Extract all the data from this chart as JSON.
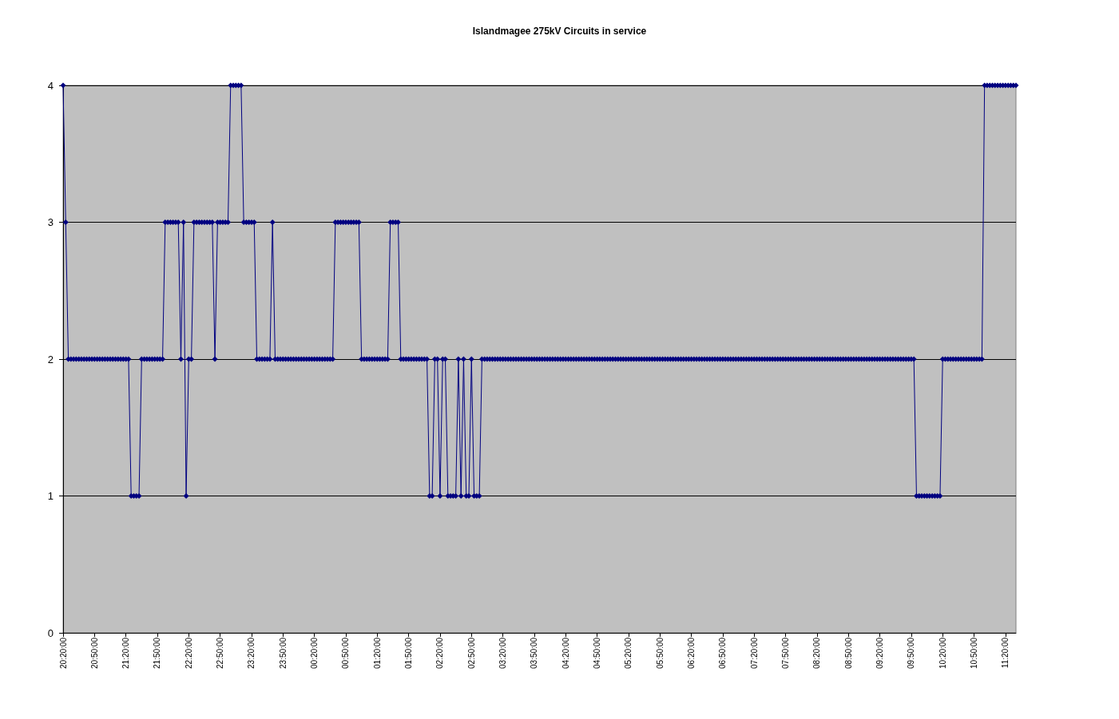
{
  "chart_data": {
    "type": "line",
    "title": "Islandmagee 275kV Circuits in service",
    "categories": [
      "20:20:00",
      null,
      null,
      null,
      null,
      null,
      null,
      null,
      null,
      null,
      null,
      null,
      "20:50:00",
      null,
      null,
      null,
      null,
      null,
      null,
      null,
      null,
      null,
      null,
      null,
      "21:20:00",
      null,
      null,
      null,
      null,
      null,
      null,
      null,
      null,
      null,
      null,
      null,
      "21:50:00",
      null,
      null,
      null,
      null,
      null,
      null,
      null,
      null,
      null,
      null,
      null,
      "22:20:00",
      null,
      null,
      null,
      null,
      null,
      null,
      null,
      null,
      null,
      null,
      null,
      "22:50:00",
      null,
      null,
      null,
      null,
      null,
      null,
      null,
      null,
      null,
      null,
      null,
      "23:20:00",
      null,
      null,
      null,
      null,
      null,
      null,
      null,
      null,
      null,
      null,
      null,
      "23:50:00",
      null,
      null,
      null,
      null,
      null,
      null,
      null,
      null,
      null,
      null,
      null,
      "00:20:00",
      null,
      null,
      null,
      null,
      null,
      null,
      null,
      null,
      null,
      null,
      null,
      "00:50:00",
      null,
      null,
      null,
      null,
      null,
      null,
      null,
      null,
      null,
      null,
      null,
      "01:20:00",
      null,
      null,
      null,
      null,
      null,
      null,
      null,
      null,
      null,
      null,
      null,
      "01:50:00",
      null,
      null,
      null,
      null,
      null,
      null,
      null,
      null,
      null,
      null,
      null,
      "02:20:00",
      null,
      null,
      null,
      null,
      null,
      null,
      null,
      null,
      null,
      null,
      null,
      "02:50:00",
      null,
      null,
      null,
      null,
      null,
      null,
      null,
      null,
      null,
      null,
      null,
      "03:20:00",
      null,
      null,
      null,
      null,
      null,
      null,
      null,
      null,
      null,
      null,
      null,
      "03:50:00",
      null,
      null,
      null,
      null,
      null,
      null,
      null,
      null,
      null,
      null,
      null,
      "04:20:00",
      null,
      null,
      null,
      null,
      null,
      null,
      null,
      null,
      null,
      null,
      null,
      "04:50:00",
      null,
      null,
      null,
      null,
      null,
      null,
      null,
      null,
      null,
      null,
      null,
      "05:20:00",
      null,
      null,
      null,
      null,
      null,
      null,
      null,
      null,
      null,
      null,
      null,
      "05:50:00",
      null,
      null,
      null,
      null,
      null,
      null,
      null,
      null,
      null,
      null,
      null,
      "06:20:00",
      null,
      null,
      null,
      null,
      null,
      null,
      null,
      null,
      null,
      null,
      null,
      "06:50:00",
      null,
      null,
      null,
      null,
      null,
      null,
      null,
      null,
      null,
      null,
      null,
      "07:20:00",
      null,
      null,
      null,
      null,
      null,
      null,
      null,
      null,
      null,
      null,
      null,
      "07:50:00",
      null,
      null,
      null,
      null,
      null,
      null,
      null,
      null,
      null,
      null,
      null,
      "08:20:00",
      null,
      null,
      null,
      null,
      null,
      null,
      null,
      null,
      null,
      null,
      null,
      "08:50:00",
      null,
      null,
      null,
      null,
      null,
      null,
      null,
      null,
      null,
      null,
      null,
      "09:20:00",
      null,
      null,
      null,
      null,
      null,
      null,
      null,
      null,
      null,
      null,
      null,
      "09:50:00",
      null,
      null,
      null,
      null,
      null,
      null,
      null,
      null,
      null,
      null,
      null,
      "10:20:00",
      null,
      null,
      null,
      null,
      null,
      null,
      null,
      null,
      null,
      null,
      null,
      "10:50:00",
      null,
      null,
      null,
      null,
      null,
      null,
      null,
      null,
      null,
      null,
      null,
      "11:20:00",
      null,
      null,
      null,
      null
    ],
    "series": [
      {
        "color": "#000080",
        "values": [
          4,
          3,
          2,
          2,
          2,
          2,
          2,
          2,
          2,
          2,
          2,
          2,
          2,
          2,
          2,
          2,
          2,
          2,
          2,
          2,
          2,
          2,
          2,
          2,
          2,
          2,
          1,
          1,
          1,
          1,
          2,
          2,
          2,
          2,
          2,
          2,
          2,
          2,
          2,
          3,
          3,
          3,
          3,
          3,
          3,
          2,
          3,
          1,
          2,
          2,
          3,
          3,
          3,
          3,
          3,
          3,
          3,
          3,
          2,
          3,
          3,
          3,
          3,
          3,
          4,
          4,
          4,
          4,
          4,
          3,
          3,
          3,
          3,
          3,
          2,
          2,
          2,
          2,
          2,
          2,
          3,
          2,
          2,
          2,
          2,
          2,
          2,
          2,
          2,
          2,
          2,
          2,
          2,
          2,
          2,
          2,
          2,
          2,
          2,
          2,
          2,
          2,
          2,
          2,
          3,
          3,
          3,
          3,
          3,
          3,
          3,
          3,
          3,
          3,
          2,
          2,
          2,
          2,
          2,
          2,
          2,
          2,
          2,
          2,
          2,
          3,
          3,
          3,
          3,
          2,
          2,
          2,
          2,
          2,
          2,
          2,
          2,
          2,
          2,
          2,
          1,
          1,
          2,
          2,
          1,
          2,
          2,
          1,
          1,
          1,
          1,
          2,
          1,
          2,
          1,
          1,
          2,
          1,
          1,
          1,
          2,
          2,
          2,
          2,
          2,
          2,
          2,
          2,
          2,
          2,
          2,
          2,
          2,
          2,
          2,
          2,
          2,
          2,
          2,
          2,
          2,
          2,
          2,
          2,
          2,
          2,
          2,
          2,
          2,
          2,
          2,
          2,
          2,
          2,
          2,
          2,
          2,
          2,
          2,
          2,
          2,
          2,
          2,
          2,
          2,
          2,
          2,
          2,
          2,
          2,
          2,
          2,
          2,
          2,
          2,
          2,
          2,
          2,
          2,
          2,
          2,
          2,
          2,
          2,
          2,
          2,
          2,
          2,
          2,
          2,
          2,
          2,
          2,
          2,
          2,
          2,
          2,
          2,
          2,
          2,
          2,
          2,
          2,
          2,
          2,
          2,
          2,
          2,
          2,
          2,
          2,
          2,
          2,
          2,
          2,
          2,
          2,
          2,
          2,
          2,
          2,
          2,
          2,
          2,
          2,
          2,
          2,
          2,
          2,
          2,
          2,
          2,
          2,
          2,
          2,
          2,
          2,
          2,
          2,
          2,
          2,
          2,
          2,
          2,
          2,
          2,
          2,
          2,
          2,
          2,
          2,
          2,
          2,
          2,
          2,
          2,
          2,
          2,
          2,
          2,
          2,
          2,
          2,
          2,
          2,
          2,
          2,
          2,
          2,
          2,
          2,
          2,
          2,
          2,
          2,
          2,
          2,
          2,
          2,
          2,
          2,
          2,
          2,
          2,
          2,
          2,
          1,
          1,
          1,
          1,
          1,
          1,
          1,
          1,
          1,
          1,
          2,
          2,
          2,
          2,
          2,
          2,
          2,
          2,
          2,
          2,
          2,
          2,
          2,
          2,
          2,
          2,
          4,
          4,
          4,
          4,
          4,
          4,
          4,
          4,
          4,
          4,
          4,
          4,
          4
        ]
      }
    ],
    "ylim": [
      0,
      4
    ],
    "yticks": [
      0,
      1,
      2,
      3,
      4
    ],
    "grid": "y",
    "marker": "diamond",
    "line_style": "solid"
  }
}
